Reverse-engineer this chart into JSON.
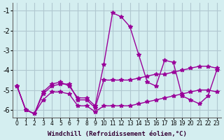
{
  "title": "",
  "xlabel": "Windchill (Refroidissement éolien,°C)",
  "ylabel": "",
  "bg_color": "#d4eef0",
  "grid_color": "#b0c8d0",
  "line_color": "#990099",
  "xlim": [
    -0.5,
    23.5
  ],
  "ylim": [
    -6.4,
    -0.6
  ],
  "yticks": [
    -6,
    -5,
    -4,
    -3,
    -2,
    -1
  ],
  "xticks": [
    0,
    1,
    2,
    3,
    4,
    5,
    6,
    7,
    8,
    9,
    10,
    11,
    12,
    13,
    14,
    15,
    16,
    17,
    18,
    19,
    20,
    21,
    22,
    23
  ],
  "line1": [
    [
      0,
      -4.8
    ],
    [
      1,
      -6.0
    ],
    [
      2,
      -6.2
    ],
    [
      3,
      -5.1
    ],
    [
      4,
      -4.7
    ],
    [
      5,
      -4.6
    ],
    [
      6,
      -4.8
    ],
    [
      7,
      -5.4
    ],
    [
      8,
      -5.4
    ],
    [
      9,
      -5.8
    ],
    [
      10,
      -3.7
    ],
    [
      11,
      -1.1
    ],
    [
      12,
      -1.3
    ],
    [
      13,
      -1.8
    ],
    [
      14,
      -3.2
    ],
    [
      15,
      -4.6
    ],
    [
      16,
      -4.8
    ],
    [
      17,
      -3.5
    ],
    [
      18,
      -3.6
    ],
    [
      19,
      -5.3
    ],
    [
      20,
      -5.5
    ],
    [
      21,
      -5.7
    ],
    [
      22,
      -5.3
    ],
    [
      23,
      -4.0
    ]
  ],
  "line2": [
    [
      0,
      -4.8
    ],
    [
      1,
      -6.0
    ],
    [
      2,
      -6.2
    ],
    [
      3,
      -5.2
    ],
    [
      4,
      -4.8
    ],
    [
      5,
      -4.7
    ],
    [
      6,
      -4.7
    ],
    [
      7,
      -5.5
    ],
    [
      8,
      -5.5
    ],
    [
      9,
      -5.9
    ],
    [
      10,
      -4.5
    ],
    [
      11,
      -4.5
    ],
    [
      12,
      -4.5
    ],
    [
      13,
      -4.5
    ],
    [
      14,
      -4.4
    ],
    [
      15,
      -4.3
    ],
    [
      16,
      -4.2
    ],
    [
      17,
      -4.2
    ],
    [
      18,
      -4.1
    ],
    [
      19,
      -4.0
    ],
    [
      20,
      -3.9
    ],
    [
      21,
      -3.8
    ],
    [
      22,
      -3.8
    ],
    [
      23,
      -3.9
    ]
  ],
  "line3": [
    [
      0,
      -4.8
    ],
    [
      1,
      -6.0
    ],
    [
      2,
      -6.2
    ],
    [
      3,
      -5.5
    ],
    [
      4,
      -5.1
    ],
    [
      5,
      -5.1
    ],
    [
      6,
      -5.2
    ],
    [
      7,
      -5.8
    ],
    [
      8,
      -5.8
    ],
    [
      9,
      -6.1
    ],
    [
      10,
      -5.8
    ],
    [
      11,
      -5.8
    ],
    [
      12,
      -5.8
    ],
    [
      13,
      -5.8
    ],
    [
      14,
      -5.7
    ],
    [
      15,
      -5.6
    ],
    [
      16,
      -5.5
    ],
    [
      17,
      -5.4
    ],
    [
      18,
      -5.3
    ],
    [
      19,
      -5.2
    ],
    [
      20,
      -5.1
    ],
    [
      21,
      -5.0
    ],
    [
      22,
      -5.0
    ],
    [
      23,
      -5.1
    ]
  ]
}
